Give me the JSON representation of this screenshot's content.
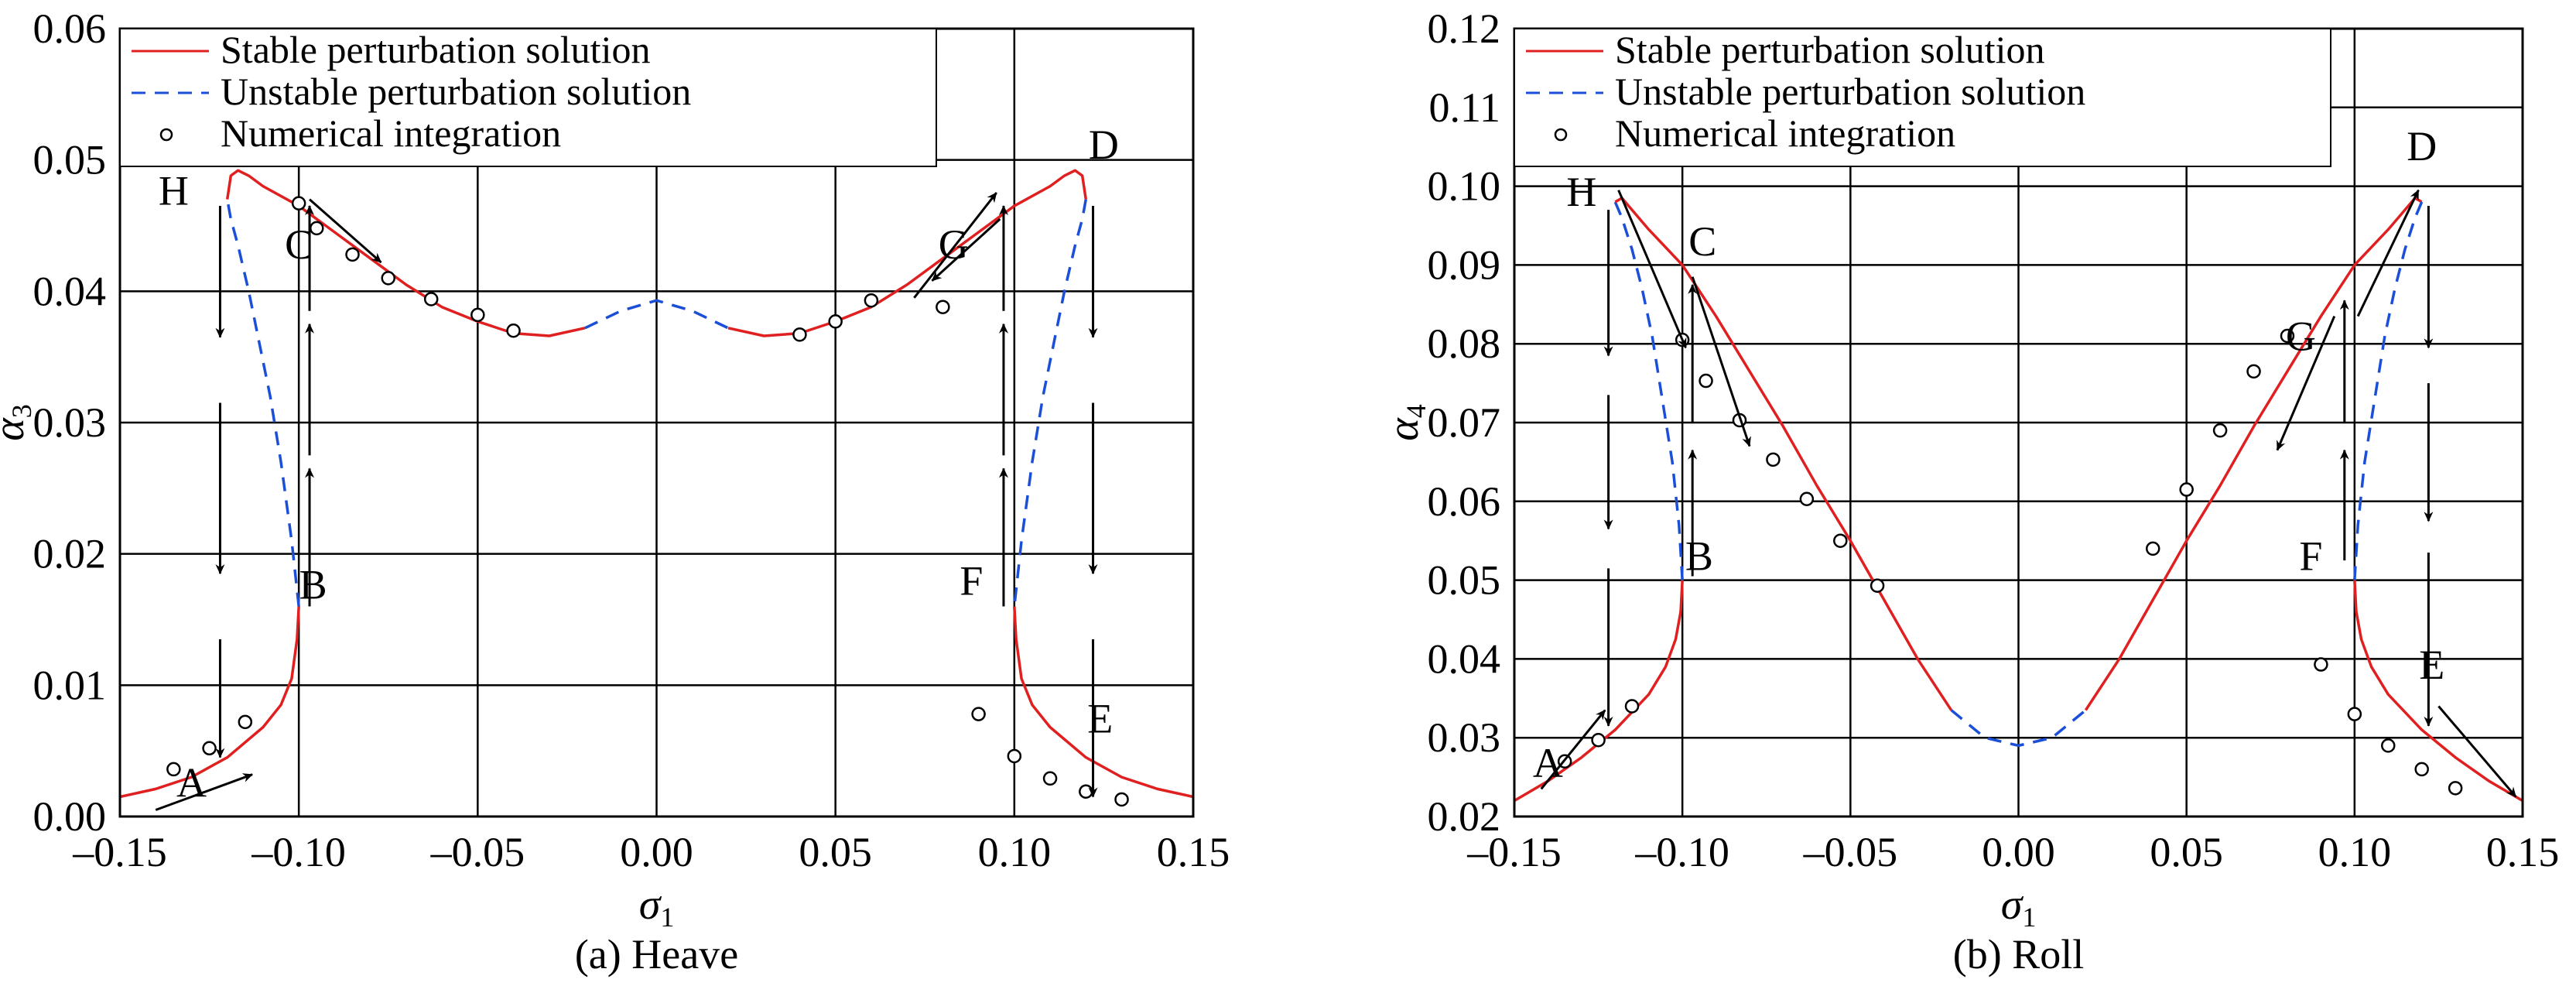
{
  "colors": {
    "stable": "#e02020",
    "unstable": "#1c4fd8",
    "ink": "#000000"
  },
  "chart_data": [
    {
      "type": "line",
      "caption": "(a) Heave",
      "xlabel": "σ",
      "xlabel_sub": "1",
      "ylabel": "α",
      "ylabel_sub": "3",
      "xlim": [
        -0.15,
        0.15
      ],
      "ylim": [
        0.0,
        0.06
      ],
      "xticks": [
        "–0.15",
        "–0.10",
        "–0.05",
        "0.00",
        "0.05",
        "0.10",
        "0.15"
      ],
      "xtick_values": [
        -0.15,
        -0.1,
        -0.05,
        0.0,
        0.05,
        0.1,
        0.15
      ],
      "yticks": [
        "0.00",
        "0.01",
        "0.02",
        "0.03",
        "0.04",
        "0.05",
        "0.06"
      ],
      "ytick_values": [
        0.0,
        0.01,
        0.02,
        0.03,
        0.04,
        0.05,
        0.06
      ],
      "grid": true,
      "legend_position": "top-left",
      "legend": [
        {
          "label": "Stable perturbation solution",
          "kind": "stable"
        },
        {
          "label": "Unstable perturbation solution",
          "kind": "unstable"
        },
        {
          "label": "Numerical integration",
          "kind": "points"
        }
      ],
      "series": [
        {
          "kind": "stable",
          "x": [
            -0.15,
            -0.14,
            -0.13,
            -0.12,
            -0.11,
            -0.105,
            -0.102,
            -0.1005,
            -0.1
          ],
          "y": [
            0.0015,
            0.0021,
            0.003,
            0.0045,
            0.0068,
            0.0085,
            0.0105,
            0.0135,
            0.016
          ]
        },
        {
          "kind": "unstable",
          "x": [
            -0.1,
            -0.102,
            -0.105,
            -0.108,
            -0.111,
            -0.114,
            -0.117,
            -0.119,
            -0.12
          ],
          "y": [
            0.016,
            0.021,
            0.027,
            0.032,
            0.036,
            0.04,
            0.0435,
            0.0455,
            0.047
          ]
        },
        {
          "kind": "stable",
          "x": [
            -0.12,
            -0.119,
            -0.117,
            -0.114,
            -0.11,
            -0.1,
            -0.09,
            -0.08,
            -0.07,
            -0.06,
            -0.05,
            -0.04,
            -0.03,
            -0.02
          ],
          "y": [
            0.047,
            0.0488,
            0.0492,
            0.0488,
            0.048,
            0.0465,
            0.0445,
            0.0425,
            0.0405,
            0.0388,
            0.0377,
            0.0368,
            0.0366,
            0.0372
          ]
        },
        {
          "kind": "unstable",
          "x": [
            -0.02,
            -0.01,
            0.0,
            0.01,
            0.02
          ],
          "y": [
            0.0372,
            0.0385,
            0.0393,
            0.0385,
            0.0372
          ]
        },
        {
          "kind": "stable",
          "x": [
            0.02,
            0.03,
            0.04,
            0.05,
            0.06,
            0.07,
            0.08,
            0.09,
            0.1,
            0.11,
            0.114,
            0.117,
            0.119,
            0.12
          ],
          "y": [
            0.0372,
            0.0366,
            0.0368,
            0.0377,
            0.0388,
            0.0405,
            0.0425,
            0.0445,
            0.0465,
            0.048,
            0.0488,
            0.0492,
            0.0488,
            0.047
          ]
        },
        {
          "kind": "unstable",
          "x": [
            0.12,
            0.119,
            0.117,
            0.114,
            0.111,
            0.108,
            0.105,
            0.102,
            0.1
          ],
          "y": [
            0.047,
            0.0455,
            0.0435,
            0.04,
            0.036,
            0.032,
            0.027,
            0.021,
            0.016
          ]
        },
        {
          "kind": "stable",
          "x": [
            0.1,
            0.1005,
            0.102,
            0.105,
            0.11,
            0.12,
            0.13,
            0.14,
            0.15
          ],
          "y": [
            0.016,
            0.0135,
            0.0105,
            0.0085,
            0.0068,
            0.0045,
            0.003,
            0.0021,
            0.0015
          ]
        }
      ],
      "points": [
        {
          "x": -0.135,
          "y": 0.0036
        },
        {
          "x": -0.125,
          "y": 0.0052
        },
        {
          "x": -0.115,
          "y": 0.0072
        },
        {
          "x": -0.1,
          "y": 0.0467
        },
        {
          "x": -0.095,
          "y": 0.0448
        },
        {
          "x": -0.085,
          "y": 0.0428
        },
        {
          "x": -0.075,
          "y": 0.041
        },
        {
          "x": -0.063,
          "y": 0.0394
        },
        {
          "x": -0.05,
          "y": 0.0382
        },
        {
          "x": -0.04,
          "y": 0.037
        },
        {
          "x": 0.04,
          "y": 0.0367
        },
        {
          "x": 0.05,
          "y": 0.0377
        },
        {
          "x": 0.06,
          "y": 0.0393
        },
        {
          "x": 0.08,
          "y": 0.0388
        },
        {
          "x": 0.09,
          "y": 0.0078
        },
        {
          "x": 0.1,
          "y": 0.0046
        },
        {
          "x": 0.11,
          "y": 0.0029
        },
        {
          "x": 0.12,
          "y": 0.0019
        },
        {
          "x": 0.13,
          "y": 0.0013
        }
      ],
      "arrows": [
        {
          "x1": -0.122,
          "y1": 0.0465,
          "x2": -0.122,
          "y2": 0.0365
        },
        {
          "x1": -0.122,
          "y1": 0.0315,
          "x2": -0.122,
          "y2": 0.0185
        },
        {
          "x1": -0.122,
          "y1": 0.0135,
          "x2": -0.122,
          "y2": 0.0045
        },
        {
          "x1": -0.097,
          "y1": 0.016,
          "x2": -0.097,
          "y2": 0.0265
        },
        {
          "x1": -0.097,
          "y1": 0.0275,
          "x2": -0.097,
          "y2": 0.0375
        },
        {
          "x1": -0.097,
          "y1": 0.0385,
          "x2": -0.097,
          "y2": 0.0465
        },
        {
          "x1": -0.14,
          "y1": 0.0005,
          "x2": -0.113,
          "y2": 0.0032
        },
        {
          "x1": -0.097,
          "y1": 0.047,
          "x2": -0.077,
          "y2": 0.0422
        },
        {
          "x1": 0.122,
          "y1": 0.0465,
          "x2": 0.122,
          "y2": 0.0365
        },
        {
          "x1": 0.122,
          "y1": 0.0315,
          "x2": 0.122,
          "y2": 0.0185
        },
        {
          "x1": 0.122,
          "y1": 0.0135,
          "x2": 0.122,
          "y2": 0.0015
        },
        {
          "x1": 0.097,
          "y1": 0.016,
          "x2": 0.097,
          "y2": 0.0265
        },
        {
          "x1": 0.097,
          "y1": 0.0275,
          "x2": 0.097,
          "y2": 0.0375
        },
        {
          "x1": 0.097,
          "y1": 0.0385,
          "x2": 0.097,
          "y2": 0.0465
        },
        {
          "x1": 0.072,
          "y1": 0.0395,
          "x2": 0.095,
          "y2": 0.0475
        },
        {
          "x1": 0.096,
          "y1": 0.0455,
          "x2": 0.077,
          "y2": 0.0408
        }
      ],
      "annotations": [
        {
          "text": "A",
          "x": -0.13,
          "y": 0.0015
        },
        {
          "text": "B",
          "x": -0.096,
          "y": 0.0166
        },
        {
          "text": "C",
          "x": -0.1,
          "y": 0.0425
        },
        {
          "text": "D",
          "x": 0.125,
          "y": 0.0501
        },
        {
          "text": "E",
          "x": 0.124,
          "y": 0.0064
        },
        {
          "text": "F",
          "x": 0.088,
          "y": 0.0169
        },
        {
          "text": "G",
          "x": 0.083,
          "y": 0.0425
        },
        {
          "text": "H",
          "x": -0.135,
          "y": 0.0466
        }
      ]
    },
    {
      "type": "line",
      "caption": "(b) Roll",
      "xlabel": "σ",
      "xlabel_sub": "1",
      "ylabel": "α",
      "ylabel_sub": "4",
      "xlim": [
        -0.15,
        0.15
      ],
      "ylim": [
        0.02,
        0.12
      ],
      "xticks": [
        "–0.15",
        "–0.10",
        "–0.05",
        "0.00",
        "0.05",
        "0.10",
        "0.15"
      ],
      "xtick_values": [
        -0.15,
        -0.1,
        -0.05,
        0.0,
        0.05,
        0.1,
        0.15
      ],
      "yticks": [
        "0.02",
        "0.03",
        "0.04",
        "0.05",
        "0.06",
        "0.07",
        "0.08",
        "0.09",
        "0.10",
        "0.11",
        "0.12"
      ],
      "ytick_values": [
        0.02,
        0.03,
        0.04,
        0.05,
        0.06,
        0.07,
        0.08,
        0.09,
        0.1,
        0.11,
        0.12
      ],
      "grid": true,
      "legend_position": "top-left",
      "legend": [
        {
          "label": "Stable perturbation solution",
          "kind": "stable"
        },
        {
          "label": "Unstable perturbation solution",
          "kind": "unstable"
        },
        {
          "label": "Numerical integration",
          "kind": "points"
        }
      ],
      "series": [
        {
          "kind": "stable",
          "x": [
            -0.15,
            -0.14,
            -0.13,
            -0.12,
            -0.11,
            -0.105,
            -0.102,
            -0.1005,
            -0.1
          ],
          "y": [
            0.022,
            0.0245,
            0.0275,
            0.031,
            0.0355,
            0.039,
            0.0425,
            0.046,
            0.05
          ]
        },
        {
          "kind": "unstable",
          "x": [
            -0.1,
            -0.101,
            -0.103,
            -0.106,
            -0.109,
            -0.112,
            -0.115,
            -0.118,
            -0.12
          ],
          "y": [
            0.05,
            0.057,
            0.065,
            0.073,
            0.081,
            0.087,
            0.092,
            0.096,
            0.098
          ]
        },
        {
          "kind": "stable",
          "x": [
            -0.12,
            -0.118,
            -0.11,
            -0.1,
            -0.09,
            -0.08,
            -0.07,
            -0.06,
            -0.05,
            -0.04,
            -0.03,
            -0.02
          ],
          "y": [
            0.098,
            0.0985,
            0.0945,
            0.09,
            0.0835,
            0.0765,
            0.0695,
            0.062,
            0.055,
            0.0475,
            0.04,
            0.0335
          ]
        },
        {
          "kind": "unstable",
          "x": [
            -0.02,
            -0.01,
            0.0,
            0.01,
            0.02
          ],
          "y": [
            0.0335,
            0.03,
            0.029,
            0.03,
            0.0335
          ]
        },
        {
          "kind": "stable",
          "x": [
            0.02,
            0.03,
            0.04,
            0.05,
            0.06,
            0.07,
            0.08,
            0.09,
            0.1,
            0.11,
            0.118,
            0.12
          ],
          "y": [
            0.0335,
            0.04,
            0.0475,
            0.055,
            0.062,
            0.0695,
            0.0765,
            0.0835,
            0.09,
            0.0945,
            0.0985,
            0.098
          ]
        },
        {
          "kind": "unstable",
          "x": [
            0.12,
            0.118,
            0.115,
            0.112,
            0.109,
            0.106,
            0.103,
            0.101,
            0.1
          ],
          "y": [
            0.098,
            0.096,
            0.092,
            0.087,
            0.081,
            0.073,
            0.065,
            0.057,
            0.05
          ]
        },
        {
          "kind": "stable",
          "x": [
            0.1,
            0.1005,
            0.102,
            0.105,
            0.11,
            0.12,
            0.13,
            0.14,
            0.15
          ],
          "y": [
            0.05,
            0.046,
            0.0425,
            0.039,
            0.0355,
            0.031,
            0.0275,
            0.0245,
            0.022
          ]
        }
      ],
      "points": [
        {
          "x": -0.135,
          "y": 0.027
        },
        {
          "x": -0.125,
          "y": 0.0297
        },
        {
          "x": -0.115,
          "y": 0.034
        },
        {
          "x": -0.1,
          "y": 0.0805
        },
        {
          "x": -0.093,
          "y": 0.0753
        },
        {
          "x": -0.083,
          "y": 0.0703
        },
        {
          "x": -0.073,
          "y": 0.0653
        },
        {
          "x": -0.063,
          "y": 0.0603
        },
        {
          "x": -0.053,
          "y": 0.055
        },
        {
          "x": -0.042,
          "y": 0.0493
        },
        {
          "x": 0.04,
          "y": 0.054
        },
        {
          "x": 0.05,
          "y": 0.0615
        },
        {
          "x": 0.06,
          "y": 0.069
        },
        {
          "x": 0.07,
          "y": 0.0765
        },
        {
          "x": 0.08,
          "y": 0.081
        },
        {
          "x": 0.09,
          "y": 0.0393
        },
        {
          "x": 0.1,
          "y": 0.033
        },
        {
          "x": 0.11,
          "y": 0.029
        },
        {
          "x": 0.12,
          "y": 0.026
        },
        {
          "x": 0.13,
          "y": 0.0236
        }
      ],
      "arrows": [
        {
          "x1": -0.122,
          "y1": 0.097,
          "x2": -0.122,
          "y2": 0.0785
        },
        {
          "x1": -0.122,
          "y1": 0.0735,
          "x2": -0.122,
          "y2": 0.0565
        },
        {
          "x1": -0.122,
          "y1": 0.0515,
          "x2": -0.122,
          "y2": 0.0315
        },
        {
          "x1": -0.097,
          "y1": 0.0505,
          "x2": -0.097,
          "y2": 0.0665
        },
        {
          "x1": -0.097,
          "y1": 0.07,
          "x2": -0.097,
          "y2": 0.0875
        },
        {
          "x1": -0.142,
          "y1": 0.0235,
          "x2": -0.123,
          "y2": 0.0335
        },
        {
          "x1": -0.119,
          "y1": 0.0995,
          "x2": -0.099,
          "y2": 0.0795
        },
        {
          "x1": -0.097,
          "y1": 0.0885,
          "x2": -0.08,
          "y2": 0.067
        },
        {
          "x1": 0.122,
          "y1": 0.0975,
          "x2": 0.122,
          "y2": 0.0795
        },
        {
          "x1": 0.122,
          "y1": 0.075,
          "x2": 0.122,
          "y2": 0.0575
        },
        {
          "x1": 0.122,
          "y1": 0.0535,
          "x2": 0.122,
          "y2": 0.0315
        },
        {
          "x1": 0.097,
          "y1": 0.0525,
          "x2": 0.097,
          "y2": 0.0665
        },
        {
          "x1": 0.097,
          "y1": 0.07,
          "x2": 0.097,
          "y2": 0.0855
        },
        {
          "x1": 0.125,
          "y1": 0.034,
          "x2": 0.148,
          "y2": 0.0225
        },
        {
          "x1": 0.094,
          "y1": 0.0835,
          "x2": 0.077,
          "y2": 0.0665
        },
        {
          "x1": 0.101,
          "y1": 0.0835,
          "x2": 0.119,
          "y2": 0.0995
        }
      ],
      "annotations": [
        {
          "text": "A",
          "x": -0.14,
          "y": 0.025
        },
        {
          "text": "B",
          "x": -0.095,
          "y": 0.0513
        },
        {
          "text": "C",
          "x": -0.094,
          "y": 0.0912
        },
        {
          "text": "D",
          "x": 0.12,
          "y": 0.1033
        },
        {
          "text": "E",
          "x": 0.123,
          "y": 0.0375
        },
        {
          "text": "F",
          "x": 0.087,
          "y": 0.0513
        },
        {
          "text": "G",
          "x": 0.084,
          "y": 0.0792
        },
        {
          "text": "H",
          "x": -0.13,
          "y": 0.0975
        }
      ]
    }
  ]
}
